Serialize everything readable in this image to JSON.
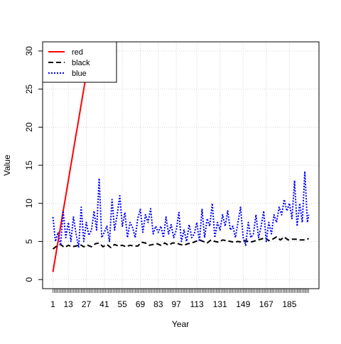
{
  "chart_data": {
    "type": "line",
    "title": "",
    "xlabel": "Year",
    "ylabel": "Value",
    "x_range": [
      1,
      200
    ],
    "ylim": [
      0,
      30
    ],
    "x_tick_labels": [
      "1",
      "13",
      "27",
      "41",
      "55",
      "69",
      "83",
      "97",
      "113",
      "131",
      "149",
      "167",
      "185"
    ],
    "y_tick_labels": [
      "0",
      "5",
      "10",
      "15",
      "20",
      "25",
      "30"
    ],
    "grid": true,
    "legend_position": "top-left",
    "series": [
      {
        "name": "red",
        "color": "#ff0000",
        "dash": "solid",
        "x": [
          1,
          2,
          3,
          4,
          5,
          6,
          7,
          8,
          9,
          10,
          11,
          12,
          13,
          14,
          15,
          16,
          17,
          18,
          19,
          20,
          21,
          22,
          23,
          24,
          25,
          26,
          27,
          28,
          29,
          30,
          31
        ],
        "values": [
          1,
          2,
          3,
          4,
          5,
          6,
          7,
          8,
          9,
          10,
          11,
          12,
          13,
          14,
          15,
          16,
          17,
          18,
          19,
          20,
          21,
          22,
          23,
          24,
          25,
          26,
          27,
          28,
          29,
          30,
          31
        ]
      },
      {
        "name": "black",
        "color": "#000000",
        "dash": "dashed",
        "x": [
          1,
          4,
          7,
          10,
          13,
          16,
          19,
          22,
          25,
          28,
          31,
          34,
          37,
          40,
          43,
          46,
          49,
          52,
          55,
          58,
          61,
          64,
          67,
          70,
          73,
          76,
          79,
          82,
          85,
          88,
          91,
          94,
          97,
          100,
          103,
          106,
          109,
          112,
          115,
          118,
          121,
          124,
          127,
          130,
          133,
          136,
          139,
          142,
          145,
          148,
          151,
          154,
          157,
          160,
          163,
          166,
          169,
          172,
          175,
          178,
          181,
          184,
          187,
          190,
          193,
          196,
          199,
          200
        ],
        "values": [
          4.0,
          4.4,
          4.6,
          4.2,
          4.5,
          4.3,
          4.4,
          4.6,
          4.3,
          4.5,
          4.3,
          4.7,
          4.8,
          4.3,
          4.6,
          4.2,
          4.6,
          4.4,
          4.5,
          4.3,
          4.5,
          4.4,
          4.4,
          4.9,
          4.8,
          4.5,
          4.6,
          4.7,
          4.5,
          4.8,
          4.5,
          4.8,
          4.8,
          4.6,
          4.5,
          4.7,
          4.8,
          5.0,
          5.2,
          5.0,
          4.8,
          5.2,
          5.0,
          4.9,
          5.2,
          5.1,
          5.0,
          4.9,
          5.0,
          4.9,
          5.1,
          4.9,
          5.0,
          5.2,
          5.3,
          5.5,
          5.1,
          5.3,
          5.6,
          5.2,
          5.6,
          5.2,
          5.3,
          5.3,
          5.2,
          5.2,
          5.3,
          5.4
        ]
      },
      {
        "name": "blue",
        "color": "#0000ff",
        "dash": "dotted",
        "x": [
          1,
          3,
          5,
          7,
          9,
          11,
          13,
          15,
          17,
          19,
          21,
          23,
          25,
          27,
          29,
          31,
          33,
          35,
          37,
          39,
          41,
          43,
          45,
          47,
          49,
          51,
          53,
          55,
          57,
          59,
          61,
          63,
          65,
          67,
          69,
          71,
          73,
          75,
          77,
          79,
          81,
          83,
          85,
          87,
          89,
          91,
          93,
          95,
          97,
          99,
          101,
          103,
          105,
          107,
          109,
          111,
          113,
          115,
          117,
          119,
          121,
          123,
          125,
          127,
          129,
          131,
          133,
          135,
          137,
          139,
          141,
          143,
          145,
          147,
          149,
          151,
          153,
          155,
          157,
          159,
          161,
          163,
          165,
          167,
          169,
          171,
          173,
          175,
          177,
          179,
          181,
          183,
          185,
          187,
          189,
          191,
          193,
          195,
          197,
          199,
          200
        ],
        "values": [
          8.2,
          5.0,
          6.2,
          4.5,
          9.0,
          5.5,
          7.5,
          5.0,
          8.2,
          6.0,
          4.2,
          9.5,
          5.0,
          7.5,
          5.8,
          6.5,
          9.0,
          6.5,
          13.3,
          5.5,
          6.2,
          7.0,
          5.0,
          10.5,
          6.5,
          8.5,
          11.0,
          7.0,
          8.8,
          5.5,
          7.5,
          6.8,
          5.5,
          8.0,
          9.2,
          6.2,
          8.5,
          7.5,
          9.3,
          6.0,
          7.0,
          6.2,
          7.0,
          5.5,
          8.2,
          6.0,
          7.2,
          5.5,
          6.5,
          8.8,
          5.0,
          6.5,
          5.0,
          7.2,
          5.5,
          6.0,
          7.5,
          5.0,
          9.2,
          5.5,
          8.0,
          7.0,
          10.0,
          5.5,
          7.5,
          6.5,
          8.5,
          7.0,
          9.0,
          6.5,
          7.0,
          5.5,
          7.5,
          9.5,
          5.5,
          4.5,
          7.5,
          5.5,
          6.0,
          8.5,
          5.5,
          7.0,
          9.0,
          5.0,
          7.5,
          6.0,
          8.5,
          7.5,
          9.5,
          8.5,
          10.5,
          9.0,
          10.0,
          8.0,
          13.0,
          7.0,
          10.0,
          7.5,
          14.2,
          7.5,
          8.5
        ]
      }
    ]
  }
}
